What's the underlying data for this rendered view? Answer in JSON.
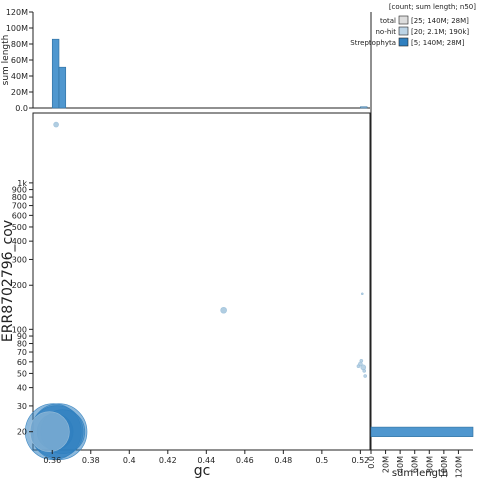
{
  "chart_data": {
    "type": "scatter",
    "xlabel": "gc",
    "ylabel": "ERR8702796_cov",
    "xlim": [
      0.35,
      0.525
    ],
    "ylim": [
      15,
      3000
    ],
    "y_scale": "log",
    "x_ticks": [
      {
        "value": 0.36,
        "label": "0.36"
      },
      {
        "value": 0.38,
        "label": "0.38"
      },
      {
        "value": 0.4,
        "label": "0.4"
      },
      {
        "value": 0.42,
        "label": "0.42"
      },
      {
        "value": 0.44,
        "label": "0.44"
      },
      {
        "value": 0.46,
        "label": "0.46"
      },
      {
        "value": 0.48,
        "label": "0.48"
      },
      {
        "value": 0.5,
        "label": "0.5"
      },
      {
        "value": 0.52,
        "label": "0.52"
      }
    ],
    "y_ticks": [
      {
        "value": 20,
        "label": "20"
      },
      {
        "value": 30,
        "label": "30"
      },
      {
        "value": 40,
        "label": "40"
      },
      {
        "value": 50,
        "label": "50"
      },
      {
        "value": 60,
        "label": "60"
      },
      {
        "value": 70,
        "label": "70"
      },
      {
        "value": 80,
        "label": "80"
      },
      {
        "value": 90,
        "label": "90"
      },
      {
        "value": 100,
        "label": "100"
      },
      {
        "value": 200,
        "label": "200"
      },
      {
        "value": 300,
        "label": "300"
      },
      {
        "value": 400,
        "label": "400"
      },
      {
        "value": 500,
        "label": "500"
      },
      {
        "value": 600,
        "label": "600"
      },
      {
        "value": 700,
        "label": "700"
      },
      {
        "value": 800,
        "label": "800"
      },
      {
        "value": 900,
        "label": "900"
      },
      {
        "value": 1000,
        "label": "1k"
      }
    ],
    "points": [
      {
        "gc": 0.3605,
        "cov": 20,
        "size": 28,
        "color": "#2f7fbf",
        "opacity": 0.55
      },
      {
        "gc": 0.3635,
        "cov": 20,
        "size": 28,
        "color": "#2f7fbf",
        "opacity": 0.55
      },
      {
        "gc": 0.3625,
        "cov": 20,
        "size": 26,
        "color": "#2f7fbf",
        "opacity": 0.6
      },
      {
        "gc": 0.3655,
        "cov": 20,
        "size": 22,
        "color": "#2f7fbf",
        "opacity": 0.55
      },
      {
        "gc": 0.3615,
        "cov": 20,
        "size": 18,
        "color": "#2f7fbf",
        "opacity": 0.7
      },
      {
        "gc": 0.3585,
        "cov": 20,
        "size": 20,
        "color": "#9cc0da",
        "opacity": 0.6
      },
      {
        "gc": 0.362,
        "cov": 2500,
        "size": 2.5,
        "color": "#9cc0da",
        "opacity": 0.8
      },
      {
        "gc": 0.449,
        "cov": 135,
        "size": 3,
        "color": "#9cc0da",
        "opacity": 0.8
      },
      {
        "gc": 0.521,
        "cov": 175,
        "size": 1,
        "color": "#9cc0da",
        "opacity": 0.8
      },
      {
        "gc": 0.52,
        "cov": 58,
        "size": 2,
        "color": "#9cc0da",
        "opacity": 0.7
      },
      {
        "gc": 0.5215,
        "cov": 55,
        "size": 2.5,
        "color": "#9cc0da",
        "opacity": 0.7
      },
      {
        "gc": 0.522,
        "cov": 52,
        "size": 1.5,
        "color": "#9cc0da",
        "opacity": 0.7
      },
      {
        "gc": 0.5205,
        "cov": 61,
        "size": 1.5,
        "color": "#9cc0da",
        "opacity": 0.7
      },
      {
        "gc": 0.519,
        "cov": 56,
        "size": 1.5,
        "color": "#9cc0da",
        "opacity": 0.7
      },
      {
        "gc": 0.5225,
        "cov": 48,
        "size": 1.5,
        "color": "#9cc0da",
        "opacity": 0.7
      }
    ],
    "top_histogram": {
      "ylabel": "sum length",
      "ylim": [
        0,
        120000000
      ],
      "y_ticks": [
        {
          "value": 0,
          "label": "0.0"
        },
        {
          "value": 20000000,
          "label": "20M"
        },
        {
          "value": 40000000,
          "label": "40M"
        },
        {
          "value": 60000000,
          "label": "60M"
        },
        {
          "value": 80000000,
          "label": "80M"
        },
        {
          "value": 100000000,
          "label": "100M"
        },
        {
          "value": 120000000,
          "label": "120M"
        }
      ],
      "bin_width": 0.0035,
      "bins": [
        {
          "x0": 0.36,
          "value": 86000000,
          "color": "#4f97cf"
        },
        {
          "x0": 0.3635,
          "value": 51000000,
          "color": "#4f97cf"
        },
        {
          "x0": 0.52,
          "value": 1500000,
          "color": "#9cc0da"
        }
      ]
    },
    "right_histogram": {
      "xlabel": "sum length",
      "xlim": [
        0,
        140000000
      ],
      "x_ticks": [
        {
          "value": 0,
          "label": "0.0"
        },
        {
          "value": 20000000,
          "label": "20M"
        },
        {
          "value": 40000000,
          "label": "40M"
        },
        {
          "value": 60000000,
          "label": "60M"
        },
        {
          "value": 80000000,
          "label": "80M"
        },
        {
          "value": 100000000,
          "label": "100M"
        },
        {
          "value": 120000000,
          "label": "120M"
        }
      ],
      "bins": [
        {
          "y0": 18.5,
          "y1": 21.5,
          "value": 140000000,
          "color": "#4f97cf"
        }
      ]
    },
    "legend": {
      "title": "[count; sum length; n50]",
      "placement": "top-right",
      "entries": [
        {
          "name": "total",
          "stats": "[25; 140M; 28M]",
          "color": "#dddddd"
        },
        {
          "name": "no-hit",
          "stats": "[20; 2.1M; 190k]",
          "color": "#bcd4e6"
        },
        {
          "name": "Streptophyta",
          "stats": "[5; 140M; 28M]",
          "color": "#2f7fbf"
        }
      ]
    }
  }
}
